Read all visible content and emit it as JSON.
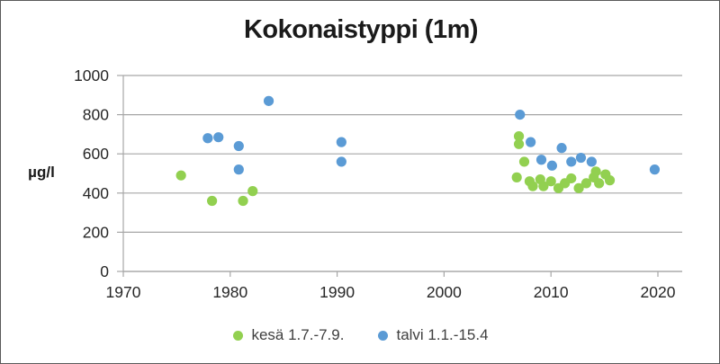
{
  "chart_data": {
    "type": "scatter",
    "title": "Kokonaistyppi (1m)",
    "ylabel": "µg/l",
    "xlabel": "",
    "xlim": [
      1970,
      2022.3
    ],
    "ylim": [
      0,
      1000
    ],
    "x_ticks": [
      1970,
      1980,
      1990,
      2000,
      2010,
      2020
    ],
    "y_ticks": [
      0,
      200,
      400,
      600,
      800,
      1000
    ],
    "grid": "horizontal",
    "gridline_color": "#a6a6a6",
    "legend_position": "bottom",
    "series": [
      {
        "name": "kesä 1.7.-7.9.",
        "color": "#92d050",
        "points": [
          [
            1975.4,
            490
          ],
          [
            1978.3,
            360
          ],
          [
            1981.2,
            360
          ],
          [
            1982.1,
            410
          ],
          [
            2006.8,
            480
          ],
          [
            2007.0,
            690
          ],
          [
            2007.0,
            650
          ],
          [
            2007.5,
            560
          ],
          [
            2008.0,
            460
          ],
          [
            2008.3,
            435
          ],
          [
            2009.0,
            470
          ],
          [
            2009.3,
            435
          ],
          [
            2010.0,
            460
          ],
          [
            2010.7,
            425
          ],
          [
            2011.3,
            450
          ],
          [
            2011.9,
            475
          ],
          [
            2012.6,
            425
          ],
          [
            2013.3,
            450
          ],
          [
            2014.0,
            480
          ],
          [
            2014.2,
            510
          ],
          [
            2014.5,
            450
          ],
          [
            2015.1,
            495
          ],
          [
            2015.5,
            465
          ]
        ]
      },
      {
        "name": "talvi 1.1.-15.4",
        "color": "#5b9bd5",
        "points": [
          [
            1977.9,
            680
          ],
          [
            1978.9,
            685
          ],
          [
            1980.8,
            640
          ],
          [
            1980.8,
            520
          ],
          [
            1983.6,
            870
          ],
          [
            1990.4,
            660
          ],
          [
            1990.4,
            560
          ],
          [
            2007.1,
            800
          ],
          [
            2008.1,
            660
          ],
          [
            2009.1,
            570
          ],
          [
            2010.1,
            540
          ],
          [
            2011.0,
            630
          ],
          [
            2011.9,
            560
          ],
          [
            2012.8,
            580
          ],
          [
            2013.8,
            560
          ],
          [
            2019.7,
            520
          ]
        ]
      }
    ]
  }
}
